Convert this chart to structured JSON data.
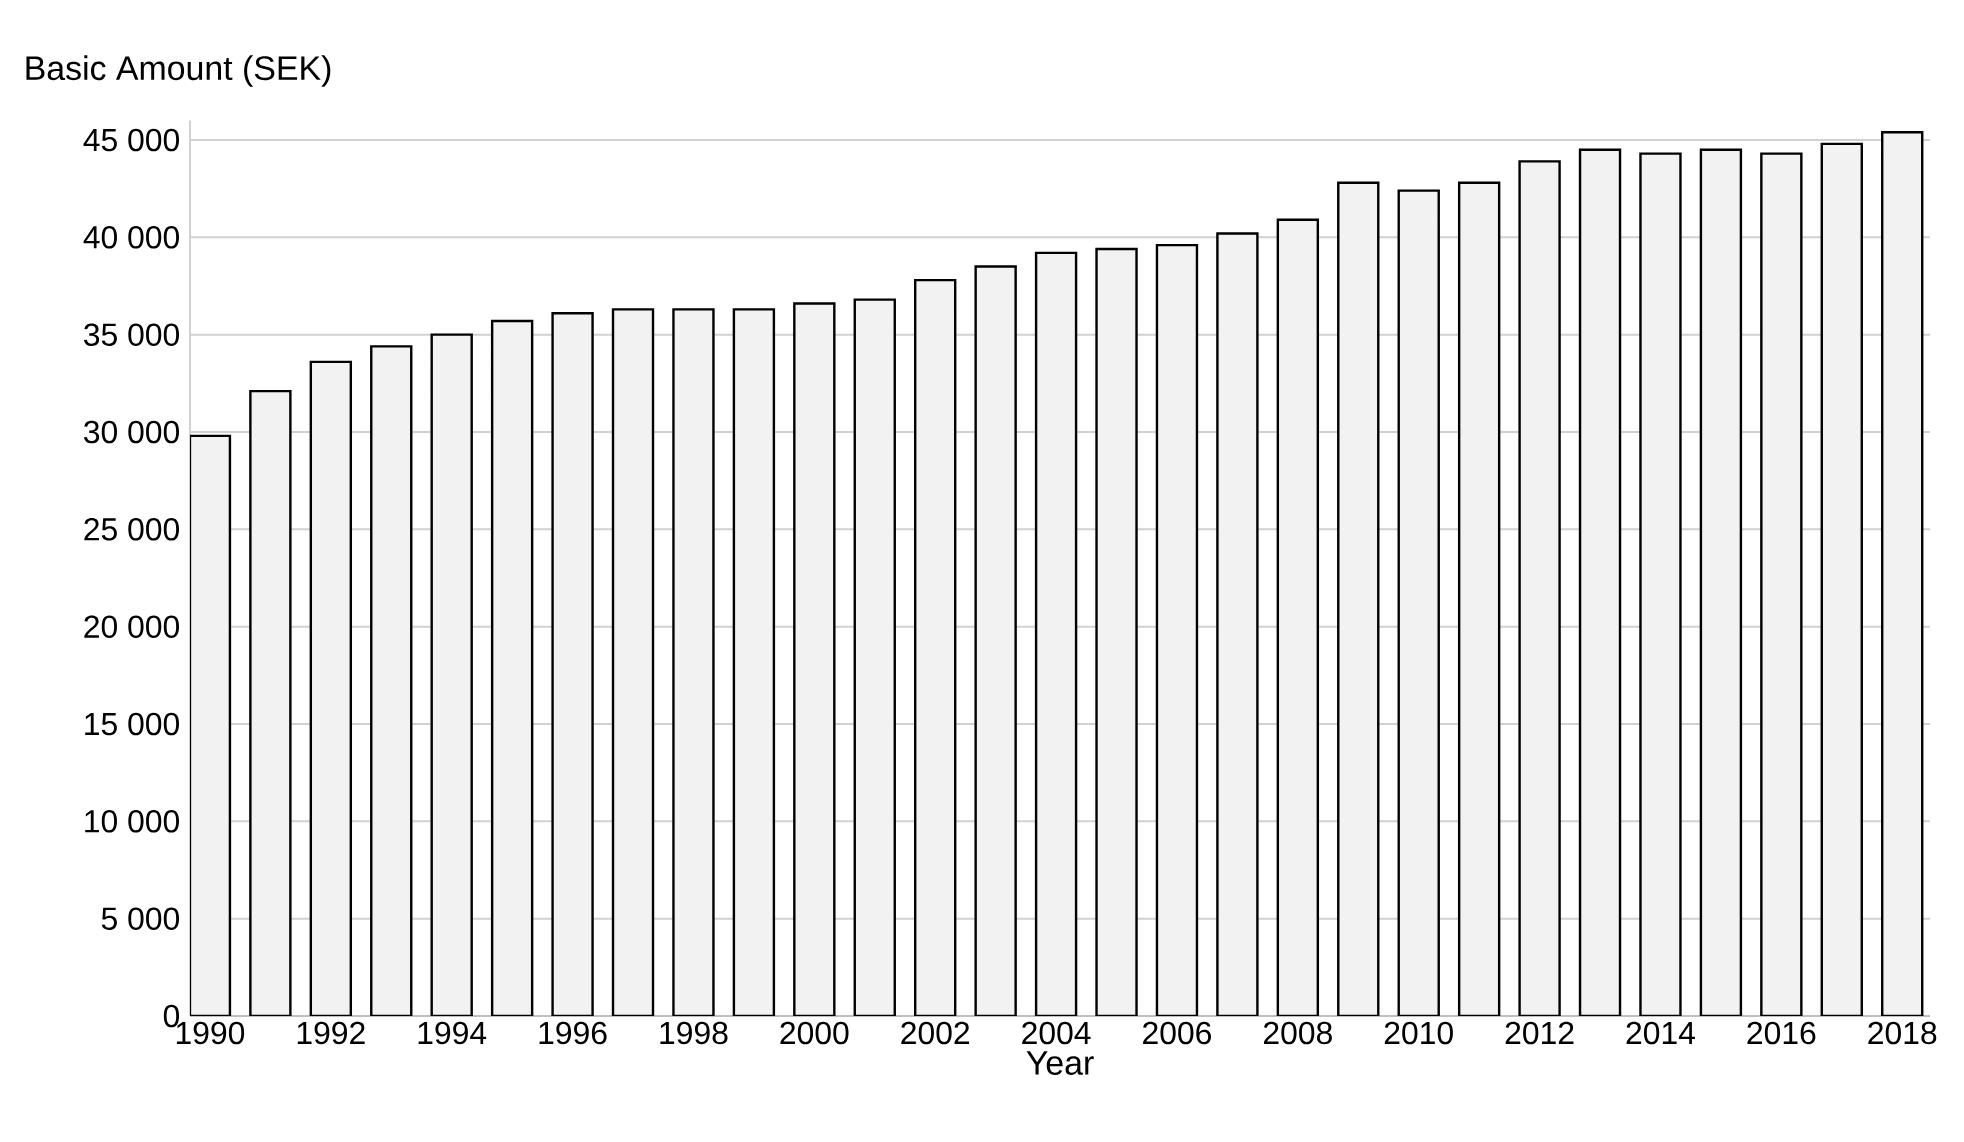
{
  "chart_data": {
    "type": "bar",
    "ylabel": "Basic Amount (SEK)",
    "xlabel": "Year",
    "categories": [
      "1990",
      null,
      "1992",
      null,
      "1994",
      null,
      "1996",
      null,
      "1998",
      null,
      "2000",
      null,
      "2002",
      null,
      "2004",
      null,
      "2006",
      null,
      "2008",
      null,
      "2010",
      null,
      "2012",
      null,
      "2014",
      null,
      "2016",
      null,
      "2018"
    ],
    "values": [
      29800,
      32100,
      33600,
      34400,
      35000,
      35700,
      36100,
      36300,
      36300,
      36300,
      36600,
      36800,
      37800,
      38500,
      39200,
      39400,
      39600,
      40200,
      40900,
      42800,
      42400,
      42800,
      43900,
      44500,
      44300,
      44500,
      44300,
      44800,
      45400
    ],
    "color": "#f2f2f2",
    "ylim": [
      0,
      46000
    ],
    "yticks": [
      0,
      {
        "value": 5000,
        "label": "5 000"
      },
      {
        "value": 10000,
        "label": "10 000"
      },
      {
        "value": 15000,
        "label": "15 000"
      },
      {
        "value": 20000,
        "label": "20 000"
      },
      {
        "value": 25000,
        "label": "25 000"
      },
      {
        "value": 30000,
        "label": "30 000"
      },
      {
        "value": 35000,
        "label": "35 000"
      },
      {
        "value": 40000,
        "label": "40 000"
      },
      {
        "value": 45000,
        "label": "45 000"
      }
    ],
    "grid": "y"
  }
}
